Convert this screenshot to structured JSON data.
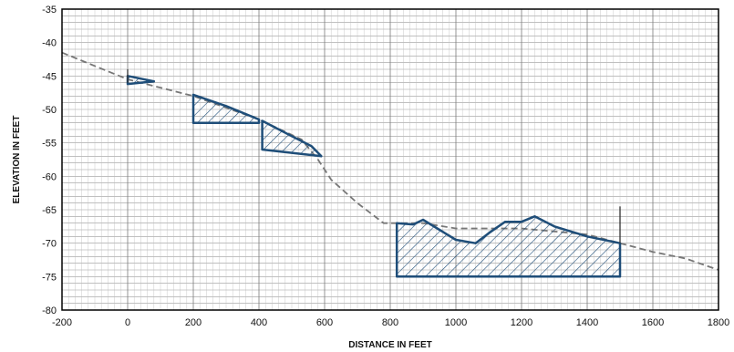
{
  "chart_data": {
    "type": "line",
    "title": "",
    "xlabel": "DISTANCE IN FEET",
    "ylabel": "ELEVATION IN FEET",
    "xlim": [
      -200,
      1800
    ],
    "ylim": [
      -80,
      -35
    ],
    "x_ticks": [
      -200,
      0,
      200,
      400,
      600,
      800,
      1000,
      1200,
      1400,
      1600,
      1800
    ],
    "y_ticks": [
      -35,
      -40,
      -45,
      -50,
      -55,
      -60,
      -65,
      -70,
      -75,
      -80
    ],
    "grid": true,
    "series": [
      {
        "style": "dashed",
        "color": "#777777",
        "points": [
          [
            -200,
            -41.5
          ],
          [
            0,
            -45.5
          ],
          [
            200,
            -48
          ],
          [
            400,
            -51.5
          ],
          [
            530,
            -54.5
          ],
          [
            580,
            -57.5
          ],
          [
            620,
            -60.5
          ],
          [
            700,
            -64
          ],
          [
            780,
            -67
          ],
          [
            900,
            -67
          ],
          [
            1000,
            -67.8
          ],
          [
            1200,
            -67.8
          ],
          [
            1400,
            -68.7
          ],
          [
            1500,
            -70
          ],
          [
            1600,
            -71.3
          ],
          [
            1700,
            -72.3
          ],
          [
            1800,
            -74
          ]
        ]
      }
    ],
    "hatched_regions": [
      {
        "color": "#1f4e79",
        "outline": [
          [
            0,
            -45
          ],
          [
            80,
            -45.8
          ],
          [
            0,
            -46.2
          ]
        ]
      },
      {
        "color": "#1f4e79",
        "outline": [
          [
            200,
            -47.8
          ],
          [
            300,
            -49.5
          ],
          [
            400,
            -51.5
          ],
          [
            400,
            -52
          ],
          [
            200,
            -52
          ]
        ]
      },
      {
        "color": "#1f4e79",
        "outline": [
          [
            410,
            -51.7
          ],
          [
            500,
            -54
          ],
          [
            560,
            -55.5
          ],
          [
            590,
            -57
          ],
          [
            410,
            -56
          ]
        ]
      },
      {
        "color": "#1f4e79",
        "outline": [
          [
            820,
            -67
          ],
          [
            870,
            -67.2
          ],
          [
            900,
            -66.5
          ],
          [
            950,
            -68
          ],
          [
            1000,
            -69.5
          ],
          [
            1060,
            -70
          ],
          [
            1100,
            -68.5
          ],
          [
            1150,
            -66.8
          ],
          [
            1200,
            -66.8
          ],
          [
            1240,
            -66
          ],
          [
            1300,
            -67.5
          ],
          [
            1400,
            -69
          ],
          [
            1500,
            -70
          ],
          [
            1500,
            -75
          ],
          [
            820,
            -75
          ]
        ]
      }
    ],
    "vertical_markers": [
      {
        "x": 0,
        "y_from": -44,
        "y_to": -46
      },
      {
        "x": 1500,
        "y_from": -70,
        "y_to": -64.5
      }
    ]
  }
}
